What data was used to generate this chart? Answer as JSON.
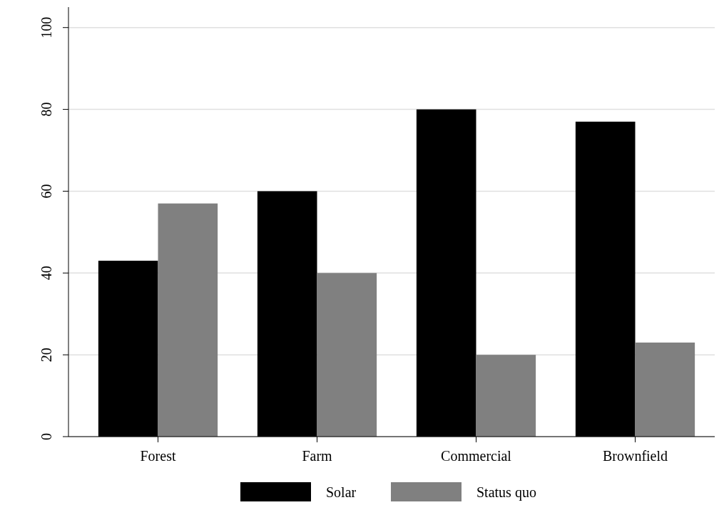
{
  "chart_data": {
    "type": "bar",
    "categories": [
      "Forest",
      "Farm",
      "Commercial",
      "Brownfield"
    ],
    "series": [
      {
        "name": "Solar",
        "color": "#000000",
        "values": [
          43,
          60,
          80,
          77
        ]
      },
      {
        "name": "Status quo",
        "color": "#808080",
        "values": [
          57,
          40,
          20,
          23
        ]
      }
    ],
    "ylim": [
      0,
      105
    ],
    "yticks": [
      0,
      20,
      40,
      60,
      80,
      100
    ],
    "grid": "y",
    "legend": "bottom"
  }
}
